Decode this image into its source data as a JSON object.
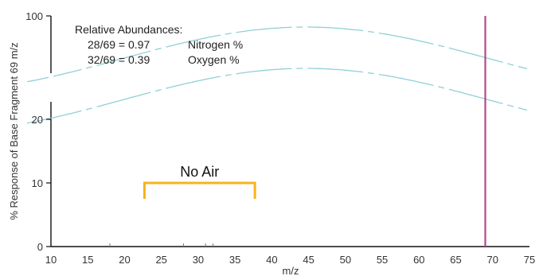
{
  "chart_data": {
    "type": "line",
    "title": "",
    "xlabel": "m/z",
    "ylabel": "% Response of Base Fragment 69 m/z",
    "xlim": [
      10,
      75
    ],
    "x_ticks": [
      "10",
      "15",
      "20",
      "25",
      "30",
      "35",
      "40",
      "45",
      "50",
      "55",
      "60",
      "65",
      "70",
      "75"
    ],
    "y_ticks": [
      {
        "value": 0,
        "label": "0"
      },
      {
        "value": 10,
        "label": "10"
      },
      {
        "value": 20,
        "label": "20"
      },
      {
        "value": 100,
        "label": "100"
      }
    ],
    "y_scale": "broken",
    "grid": false,
    "peaks": [
      {
        "mz": 69,
        "response": 100,
        "color": "#b0488f"
      }
    ],
    "noise_ticks": [
      {
        "mz": 18
      },
      {
        "mz": 28
      },
      {
        "mz": 31
      },
      {
        "mz": 32
      }
    ],
    "axis_break_color": "#8fd0d4",
    "annotation": {
      "heading": "Relative Abundances:",
      "rows": [
        {
          "ratio": "28/69 = 0.97",
          "label": "Nitrogen %"
        },
        {
          "ratio": "32/69 = 0.39",
          "label": "Oxygen %"
        }
      ]
    },
    "bracket": {
      "label": "No Air",
      "mz_start": 22.7,
      "mz_end": 37.7,
      "response": 10,
      "color": "#f5b31f"
    }
  }
}
